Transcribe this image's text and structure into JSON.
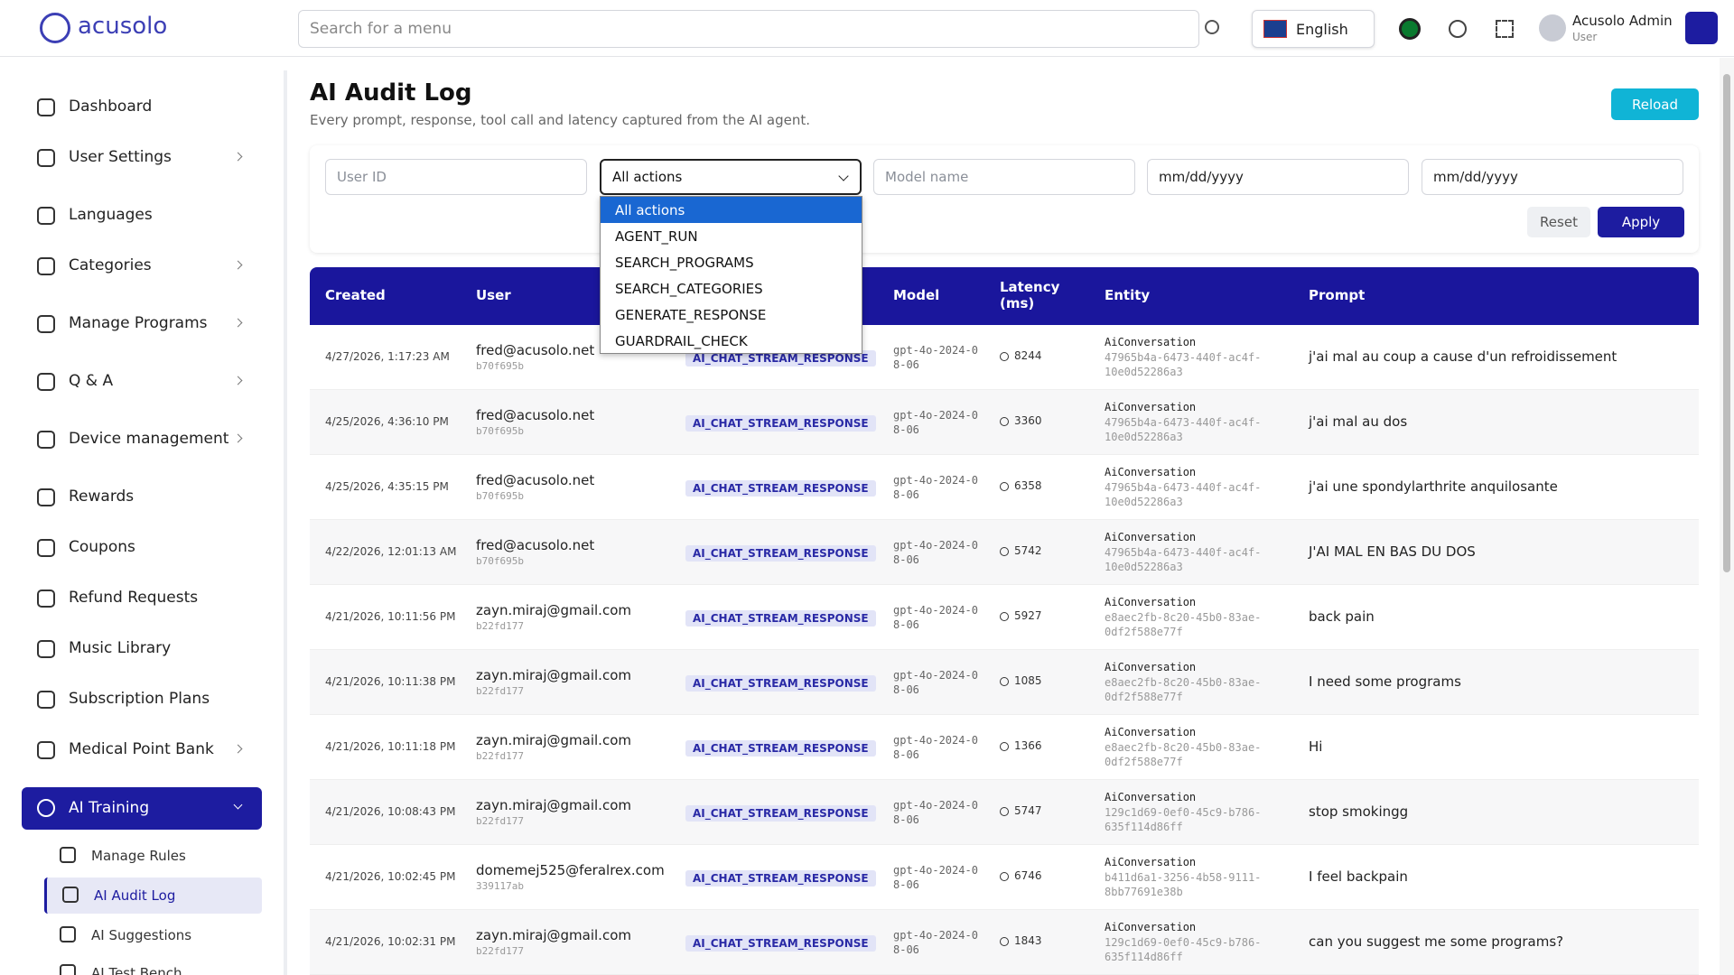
{
  "header": {
    "logo": "acusolo",
    "search_placeholder": "Search for a menu",
    "language": "English",
    "user_name": "Acusolo Admin",
    "user_role": "User"
  },
  "sidebar": {
    "items": [
      {
        "label": "Dashboard",
        "expandable": false
      },
      {
        "label": "User Settings",
        "expandable": true
      },
      {
        "label": "Languages",
        "expandable": false
      },
      {
        "label": "Categories",
        "expandable": true
      },
      {
        "label": "Manage Programs",
        "expandable": true
      },
      {
        "label": "Q & A",
        "expandable": true
      },
      {
        "label": "Device management",
        "expandable": true
      },
      {
        "label": "Rewards",
        "expandable": false
      },
      {
        "label": "Coupons",
        "expandable": false
      },
      {
        "label": "Refund Requests",
        "expandable": false
      },
      {
        "label": "Music Library",
        "expandable": false
      },
      {
        "label": "Subscription Plans",
        "expandable": false
      },
      {
        "label": "Medical Point Bank",
        "expandable": true
      }
    ],
    "active_group": {
      "label": "AI Training",
      "children": [
        "Manage Rules",
        "AI Audit Log",
        "AI Suggestions",
        "AI Test Bench"
      ],
      "active_child": 1
    }
  },
  "page": {
    "title": "AI Audit Log",
    "subtitle": "Every prompt, response, tool call and latency captured from the AI agent.",
    "reload": "Reload"
  },
  "filters": {
    "user_id_placeholder": "User ID",
    "action_select": "All actions",
    "model_placeholder": "Model name",
    "date_from": "mm/dd/yyyy",
    "date_to": "mm/dd/yyyy",
    "reset": "Reset",
    "apply": "Apply",
    "action_options": [
      "All actions",
      "AGENT_RUN",
      "SEARCH_PROGRAMS",
      "SEARCH_CATEGORIES",
      "GENERATE_RESPONSE",
      "GUARDRAIL_CHECK"
    ]
  },
  "table": {
    "headers": {
      "created": "Created",
      "user": "User",
      "model": "Model",
      "latency": "Latency (ms)",
      "entity": "Entity",
      "prompt": "Prompt"
    },
    "rows": [
      {
        "created": "4/27/2026, 1:17:23 AM",
        "email": "fred@acusolo.net",
        "user_id": "b70f695b",
        "action": "AI_CHAT_STREAM_RESPONSE",
        "model": "gpt-4o-2024-08-06",
        "latency": 8244,
        "entity_type": "AiConversation",
        "entity_id": "47965b4a-6473-440f-ac4f-10e0d52286a3",
        "prompt": "j'ai mal au coup a cause d'un refroidissement"
      },
      {
        "created": "4/25/2026, 4:36:10 PM",
        "email": "fred@acusolo.net",
        "user_id": "b70f695b",
        "action": "AI_CHAT_STREAM_RESPONSE",
        "model": "gpt-4o-2024-08-06",
        "latency": 3360,
        "entity_type": "AiConversation",
        "entity_id": "47965b4a-6473-440f-ac4f-10e0d52286a3",
        "prompt": "j'ai mal au dos"
      },
      {
        "created": "4/25/2026, 4:35:15 PM",
        "email": "fred@acusolo.net",
        "user_id": "b70f695b",
        "action": "AI_CHAT_STREAM_RESPONSE",
        "model": "gpt-4o-2024-08-06",
        "latency": 6358,
        "entity_type": "AiConversation",
        "entity_id": "47965b4a-6473-440f-ac4f-10e0d52286a3",
        "prompt": "j'ai une spondylarthrite anquilosante"
      },
      {
        "created": "4/22/2026, 12:01:13 AM",
        "email": "fred@acusolo.net",
        "user_id": "b70f695b",
        "action": "AI_CHAT_STREAM_RESPONSE",
        "model": "gpt-4o-2024-08-06",
        "latency": 5742,
        "entity_type": "AiConversation",
        "entity_id": "47965b4a-6473-440f-ac4f-10e0d52286a3",
        "prompt": "J'AI MAL EN BAS DU DOS"
      },
      {
        "created": "4/21/2026, 10:11:56 PM",
        "email": "zayn.miraj@gmail.com",
        "user_id": "b22fd177",
        "action": "AI_CHAT_STREAM_RESPONSE",
        "model": "gpt-4o-2024-08-06",
        "latency": 5927,
        "entity_type": "AiConversation",
        "entity_id": "e8aec2fb-8c20-45b0-83ae-0df2f588e77f",
        "prompt": "back pain"
      },
      {
        "created": "4/21/2026, 10:11:38 PM",
        "email": "zayn.miraj@gmail.com",
        "user_id": "b22fd177",
        "action": "AI_CHAT_STREAM_RESPONSE",
        "model": "gpt-4o-2024-08-06",
        "latency": 1085,
        "entity_type": "AiConversation",
        "entity_id": "e8aec2fb-8c20-45b0-83ae-0df2f588e77f",
        "prompt": "I need some programs"
      },
      {
        "created": "4/21/2026, 10:11:18 PM",
        "email": "zayn.miraj@gmail.com",
        "user_id": "b22fd177",
        "action": "AI_CHAT_STREAM_RESPONSE",
        "model": "gpt-4o-2024-08-06",
        "latency": 1366,
        "entity_type": "AiConversation",
        "entity_id": "e8aec2fb-8c20-45b0-83ae-0df2f588e77f",
        "prompt": "Hi"
      },
      {
        "created": "4/21/2026, 10:08:43 PM",
        "email": "zayn.miraj@gmail.com",
        "user_id": "b22fd177",
        "action": "AI_CHAT_STREAM_RESPONSE",
        "model": "gpt-4o-2024-08-06",
        "latency": 5747,
        "entity_type": "AiConversation",
        "entity_id": "129c1d69-0ef0-45c9-b786-635f114d86ff",
        "prompt": "stop smokingg"
      },
      {
        "created": "4/21/2026, 10:02:45 PM",
        "email": "domemej525@feralrex.com",
        "user_id": "339117ab",
        "action": "AI_CHAT_STREAM_RESPONSE",
        "model": "gpt-4o-2024-08-06",
        "latency": 6746,
        "entity_type": "AiConversation",
        "entity_id": "b411d6a1-3256-4b58-9111-8bb77691e38b",
        "prompt": "I feel backpain"
      },
      {
        "created": "4/21/2026, 10:02:31 PM",
        "email": "zayn.miraj@gmail.com",
        "user_id": "b22fd177",
        "action": "AI_CHAT_STREAM_RESPONSE",
        "model": "gpt-4o-2024-08-06",
        "latency": 1843,
        "entity_type": "AiConversation",
        "entity_id": "129c1d69-0ef0-45c9-b786-635f114d86ff",
        "prompt": "can you suggest me some programs?"
      }
    ]
  }
}
